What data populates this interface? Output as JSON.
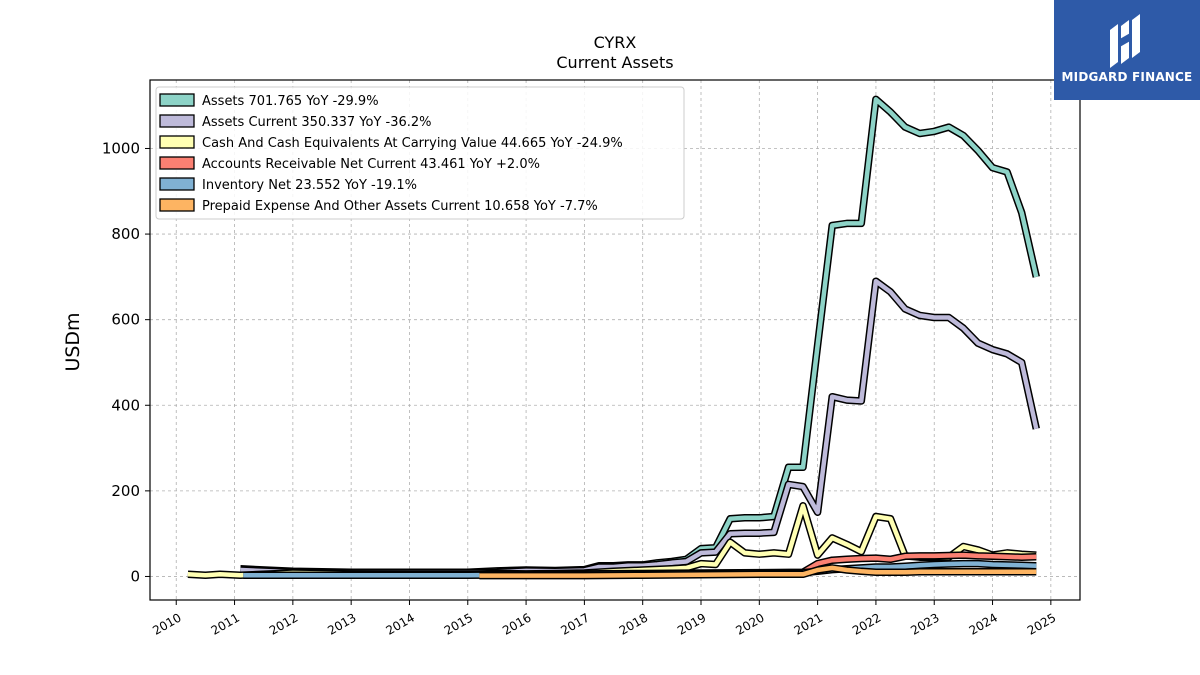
{
  "brand": {
    "name": "MIDGARD FINANCE",
    "bg_color": "#2e5aa8"
  },
  "chart_data": {
    "type": "area",
    "title": "CYRX",
    "subtitle": "Current  Assets",
    "ylabel": "USDm",
    "xlabel": "",
    "xlim": [
      2009.55,
      2025.5
    ],
    "ylim": [
      -55,
      1160
    ],
    "yticks": [
      0,
      200,
      400,
      600,
      800,
      1000
    ],
    "xticks": [
      2010,
      2011,
      2012,
      2013,
      2014,
      2015,
      2016,
      2017,
      2018,
      2019,
      2020,
      2021,
      2022,
      2023,
      2024,
      2025
    ],
    "grid": true,
    "legend_position": "top-left",
    "series": [
      {
        "name": "Assets  701.765 YoY -29.9%",
        "color": "#8dd3c7",
        "x": [
          2011.1,
          2012,
          2013,
          2014,
          2015,
          2015.5,
          2016,
          2016.5,
          2017,
          2017.25,
          2017.5,
          2017.75,
          2018,
          2018.25,
          2018.5,
          2018.75,
          2019,
          2019.25,
          2019.5,
          2019.75,
          2020,
          2020.25,
          2020.5,
          2020.75,
          2021,
          2021.25,
          2021.5,
          2021.75,
          2022,
          2022.25,
          2022.5,
          2022.75,
          2023,
          2023.25,
          2023.5,
          2023.75,
          2024,
          2024.25,
          2024.5,
          2024.75
        ],
        "values": [
          18,
          12,
          10,
          10,
          10,
          13,
          15,
          14,
          16,
          25,
          25,
          27,
          27,
          32,
          35,
          40,
          65,
          67,
          135,
          137,
          137,
          140,
          255,
          255,
          540,
          820,
          825,
          825,
          1115,
          1085,
          1050,
          1035,
          1040,
          1050,
          1030,
          995,
          955,
          945,
          850,
          700
        ]
      },
      {
        "name": "Assets Current  350.337 YoY -36.2%",
        "color": "#bebada",
        "x": [
          2011.1,
          2012,
          2013,
          2014,
          2015,
          2015.5,
          2016,
          2016.5,
          2017,
          2017.25,
          2017.5,
          2017.75,
          2018,
          2018.25,
          2018.5,
          2018.75,
          2019,
          2019.25,
          2019.5,
          2019.75,
          2020,
          2020.25,
          2020.5,
          2020.75,
          2021,
          2021.25,
          2021.5,
          2021.75,
          2022,
          2022.25,
          2022.5,
          2022.75,
          2023,
          2023.25,
          2023.5,
          2023.75,
          2024,
          2024.25,
          2024.5,
          2024.75
        ],
        "values": [
          15,
          10,
          9,
          9,
          9,
          10,
          13,
          12,
          14,
          22,
          22,
          25,
          25,
          28,
          32,
          35,
          55,
          57,
          100,
          101,
          101,
          103,
          215,
          210,
          150,
          420,
          412,
          410,
          690,
          665,
          625,
          610,
          605,
          605,
          580,
          545,
          530,
          520,
          500,
          345
        ]
      },
      {
        "name": "Cash And Cash Equivalents At Carrying Value  44.665 YoY -24.9%",
        "color": "#ffffb3",
        "x": [
          2010.2,
          2010.5,
          2010.75,
          2011.1,
          2012,
          2013,
          2014,
          2015,
          2015.5,
          2016,
          2016.5,
          2017,
          2017.5,
          2018,
          2018.5,
          2018.75,
          2019,
          2019.25,
          2019.5,
          2019.75,
          2020,
          2020.25,
          2020.5,
          2020.75,
          2021,
          2021.25,
          2021.5,
          2021.75,
          2022,
          2022.25,
          2022.5,
          2022.75,
          2023,
          2023.25,
          2023.5,
          2023.75,
          2024,
          2024.25,
          2024.5,
          2024.75
        ],
        "values": [
          5,
          3,
          5,
          3,
          8,
          6,
          5,
          5,
          7,
          6,
          7,
          8,
          12,
          15,
          18,
          20,
          30,
          28,
          80,
          55,
          52,
          55,
          52,
          165,
          50,
          90,
          75,
          58,
          140,
          135,
          48,
          45,
          45,
          45,
          70,
          62,
          50,
          55,
          52,
          50
        ]
      },
      {
        "name": "Accounts Receivable Net Current  43.461 YoY +2.0%",
        "color": "#fb8072",
        "x": [
          2015.2,
          2016,
          2017,
          2018,
          2019,
          2020,
          2020.75,
          2021,
          2021.25,
          2021.5,
          2021.75,
          2022,
          2022.25,
          2022.5,
          2022.75,
          2023,
          2023.25,
          2023.5,
          2023.75,
          2024,
          2024.25,
          2024.5,
          2024.75
        ],
        "values": [
          5,
          5,
          6,
          7,
          8,
          9,
          10,
          30,
          38,
          40,
          42,
          43,
          40,
          47,
          48,
          48,
          49,
          50,
          48,
          47,
          46,
          45,
          46
        ]
      },
      {
        "name": "Inventory Net  23.552 YoY -19.1%",
        "color": "#80b1d3",
        "x": [
          2011.15,
          2012,
          2013,
          2014,
          2015,
          2016,
          2017,
          2018,
          2019,
          2020,
          2020.75,
          2021,
          2021.25,
          2021.5,
          2021.75,
          2022,
          2022.25,
          2022.5,
          2022.75,
          2023,
          2023.25,
          2023.5,
          2023.75,
          2024,
          2024.25,
          2024.5,
          2024.75
        ],
        "values": [
          3,
          3,
          3,
          3,
          3,
          4,
          5,
          6,
          7,
          8,
          9,
          12,
          16,
          18,
          20,
          22,
          22,
          24,
          26,
          28,
          29,
          30,
          30,
          28,
          27,
          26,
          25
        ]
      },
      {
        "name": "Prepaid Expense And Other Assets Current  10.658 YoY -7.7%",
        "color": "#fdb462",
        "x": [
          2015.2,
          2016,
          2017,
          2018,
          2019,
          2020,
          2020.75,
          2021,
          2021.25,
          2021.5,
          2021.75,
          2022,
          2022.25,
          2022.5,
          2022.75,
          2023,
          2023.25,
          2023.5,
          2023.75,
          2024,
          2024.25,
          2024.5,
          2024.75
        ],
        "values": [
          2,
          2,
          2,
          3,
          4,
          5,
          5,
          15,
          20,
          15,
          12,
          10,
          10,
          10,
          11,
          11,
          11,
          11,
          11,
          11,
          11,
          11,
          11
        ]
      }
    ]
  }
}
